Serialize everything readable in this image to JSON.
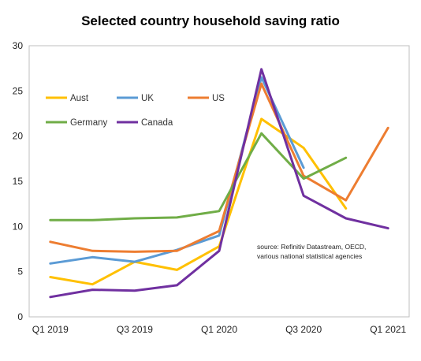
{
  "chart_data": {
    "type": "line",
    "title": "Selected country household saving ratio",
    "xlabel": "",
    "ylabel": "",
    "categories": [
      "Q1 2019",
      "Q2 2019",
      "Q3 2019",
      "Q4 2019",
      "Q1 2020",
      "Q2 2020",
      "Q3 2020",
      "Q4 2020",
      "Q1 2021"
    ],
    "x_tick_labels": [
      "Q1 2019",
      "",
      "Q3 2019",
      "",
      "Q1 2020",
      "",
      "Q3 2020",
      "",
      "Q1 2021"
    ],
    "ylim": [
      0,
      30
    ],
    "yticks": [
      0,
      5,
      10,
      15,
      20,
      25,
      30
    ],
    "grid": false,
    "legend_position": "top-left",
    "series": [
      {
        "name": "Aust",
        "color": "#FFC000",
        "values": [
          4.4,
          3.6,
          6.1,
          5.2,
          7.8,
          21.9,
          18.7,
          12.0,
          null
        ]
      },
      {
        "name": "UK",
        "color": "#5B9BD5",
        "values": [
          5.9,
          6.6,
          6.1,
          7.4,
          9.0,
          26.5,
          16.5,
          null,
          null
        ]
      },
      {
        "name": "US",
        "color": "#ED7D31",
        "values": [
          8.3,
          7.3,
          7.2,
          7.3,
          9.5,
          25.8,
          15.6,
          12.9,
          20.9
        ]
      },
      {
        "name": "Germany",
        "color": "#70AD47",
        "values": [
          10.7,
          10.7,
          10.9,
          11.0,
          11.7,
          20.3,
          15.3,
          17.6,
          null
        ]
      },
      {
        "name": "Canada",
        "color": "#7030A0",
        "values": [
          2.2,
          3.0,
          2.9,
          3.5,
          7.3,
          27.4,
          13.4,
          10.9,
          9.8
        ]
      }
    ],
    "annotation": "source:  Refinitiv Datastream, OECD,\nvarious national statistical agencies"
  }
}
